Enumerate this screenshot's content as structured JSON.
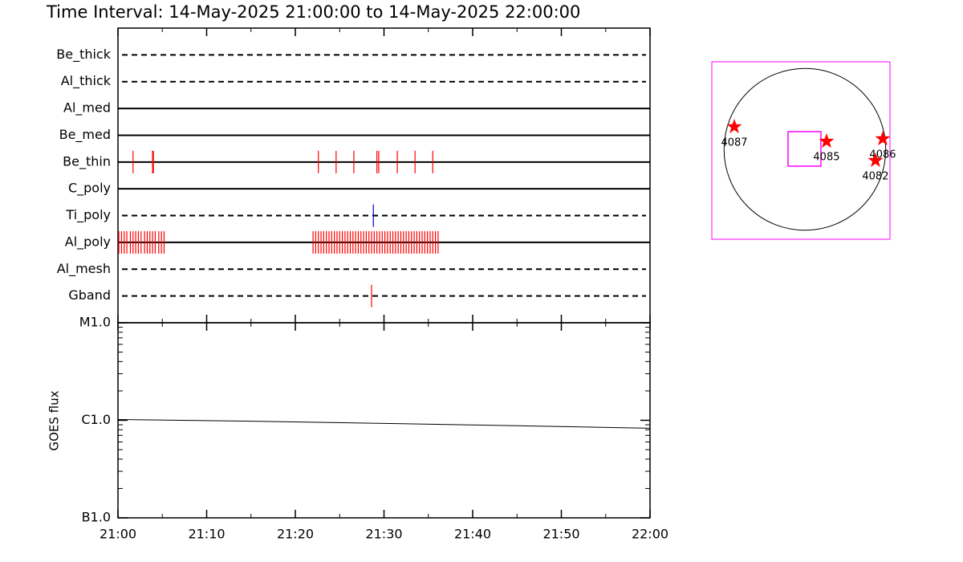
{
  "title": "Time Interval: 14-May-2025 21:00:00 to 14-May-2025 22:00:00",
  "chart_data": [
    {
      "type": "event",
      "categories": [
        "Be_thick",
        "Al_thick",
        "Al_med",
        "Be_med",
        "Be_thin",
        "C_poly",
        "Ti_poly",
        "Al_poly",
        "Al_mesh",
        "Gband"
      ],
      "line_styles": [
        "dashed",
        "dashed",
        "solid",
        "solid",
        "solid",
        "solid",
        "dashed",
        "solid",
        "dashed",
        "dashed"
      ],
      "event_colors": [
        "#ff0000",
        "#ff0000",
        "#ff0000",
        "#ff0000",
        "#ff0000",
        "#ff0000",
        "#0000cc",
        "#ff0000",
        "#ff0000",
        "#ff0000"
      ],
      "events": [
        [],
        [],
        [],
        [],
        [
          1.7,
          3.9,
          4.0,
          22.6,
          24.6,
          26.6,
          29.2,
          29.4,
          31.5,
          33.5,
          35.5
        ],
        [],
        [
          28.8
        ],
        [
          0.1,
          0.4,
          0.7,
          1.0,
          1.4,
          1.7,
          2.0,
          2.3,
          2.6,
          3.0,
          3.3,
          3.6,
          3.9,
          4.2,
          4.6,
          4.9,
          5.2,
          22.0,
          22.3,
          22.6,
          22.9,
          23.2,
          23.5,
          23.8,
          24.1,
          24.4,
          24.7,
          25.0,
          25.3,
          25.6,
          25.9,
          26.2,
          26.5,
          26.8,
          27.1,
          27.4,
          27.7,
          28.0,
          28.3,
          28.6,
          28.9,
          29.2,
          29.5,
          29.8,
          30.1,
          30.4,
          30.7,
          31.0,
          31.3,
          31.6,
          31.9,
          32.2,
          32.5,
          32.8,
          33.1,
          33.4,
          33.7,
          34.0,
          34.3,
          34.6,
          34.9,
          35.2,
          35.5,
          35.8,
          36.1
        ],
        [],
        [
          28.6
        ]
      ],
      "xlim": [
        0,
        60
      ]
    },
    {
      "type": "line",
      "ylabel": "GOES flux",
      "x": [
        0,
        15,
        30,
        45,
        60
      ],
      "values": [
        1.02e-06,
        9.8e-07,
        9.3e-07,
        8.8e-07,
        8.3e-07
      ],
      "color": "#000000",
      "xlim": [
        0,
        60
      ],
      "xticks": [
        {
          "value": 0,
          "label": "21:00"
        },
        {
          "value": 10,
          "label": "21:10"
        },
        {
          "value": 20,
          "label": "21:20"
        },
        {
          "value": 30,
          "label": "21:30"
        },
        {
          "value": 40,
          "label": "21:40"
        },
        {
          "value": 50,
          "label": "21:50"
        },
        {
          "value": 60,
          "label": "22:00"
        }
      ],
      "ylim": [
        1e-07,
        1e-05
      ],
      "yscale": "log",
      "yticks": [
        {
          "value": 1e-05,
          "label": "M1.0"
        },
        {
          "value": 1e-06,
          "label": "C1.0"
        },
        {
          "value": 1e-07,
          "label": "B1.0"
        }
      ]
    },
    {
      "type": "scatter",
      "labels": [
        "4087",
        "4085",
        "4086",
        "4082"
      ],
      "x": [
        -838,
        257,
        924,
        838
      ],
      "y": [
        267,
        95,
        124,
        -133
      ],
      "color": "#ff0000",
      "xlim": [
        -1105,
        1010
      ],
      "ylim": [
        -1067,
        1038
      ],
      "radius": 960,
      "fov": {
        "x": -5,
        "y": 5,
        "width": 390,
        "height": 410,
        "color": "#ff00ff"
      }
    }
  ]
}
